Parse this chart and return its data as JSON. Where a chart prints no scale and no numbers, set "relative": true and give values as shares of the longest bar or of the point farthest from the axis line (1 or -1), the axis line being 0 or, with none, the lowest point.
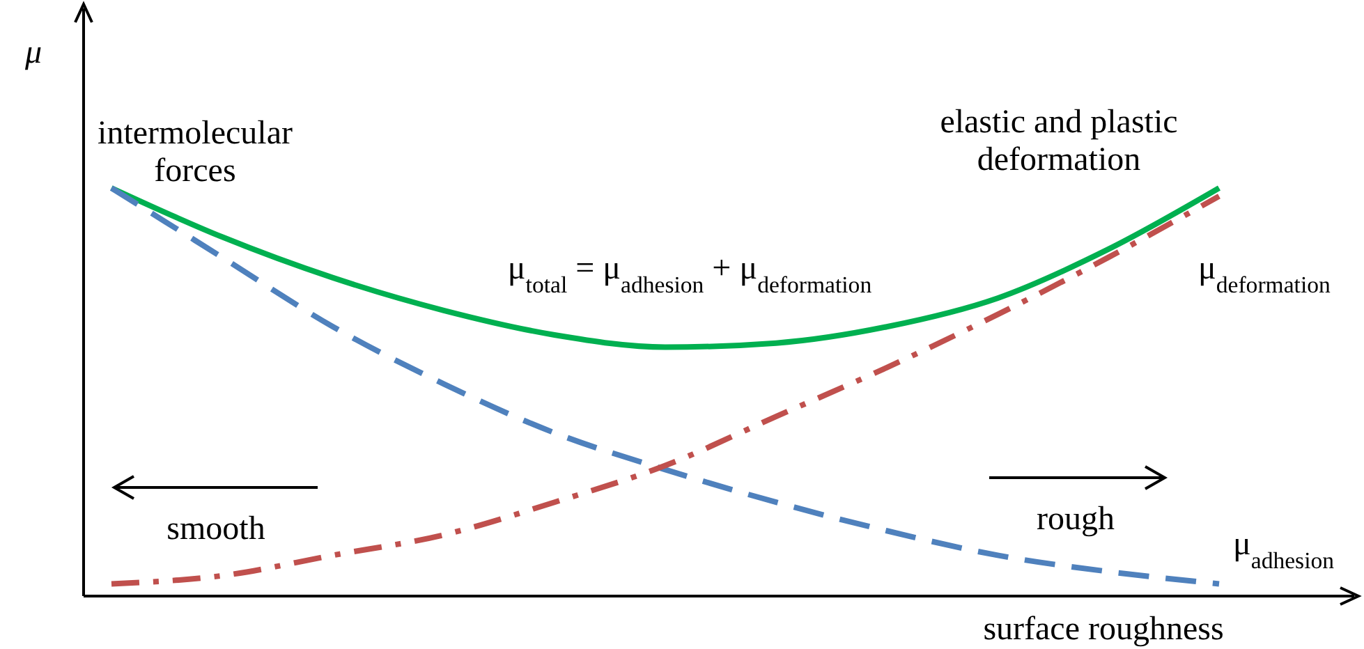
{
  "chart_data": {
    "type": "line",
    "relative": true,
    "xlabel": "surface roughness",
    "ylabel": "μ",
    "categories": [
      null,
      null,
      null,
      null,
      null,
      null,
      null,
      null,
      null,
      null,
      null
    ],
    "series": [
      {
        "color": "#00b050",
        "line_style": "solid",
        "values": [
          1.0,
          0.88,
          0.78,
          0.7,
          0.64,
          0.61,
          0.62,
          0.66,
          0.73,
          0.85,
          1.0
        ]
      },
      {
        "name": "μ$_{adhesion}$",
        "color": "#4f81bd",
        "line_style": "dashed",
        "values": [
          1.0,
          0.83,
          0.66,
          0.52,
          0.4,
          0.31,
          0.23,
          0.16,
          0.1,
          0.06,
          0.03
        ]
      },
      {
        "name": "μ$_{deformation}$",
        "color": "#c0504d",
        "line_style": "dashdot",
        "values": [
          0.03,
          0.05,
          0.1,
          0.15,
          0.23,
          0.32,
          0.44,
          0.56,
          0.69,
          0.83,
          0.98
        ]
      }
    ],
    "annotations": [
      "intermolecular forces",
      "elastic and plastic deformation",
      "μ$_{total}$ = μ$_{adhesion}$ + μ$_{deformation}$",
      "smooth",
      "rough"
    ]
  }
}
